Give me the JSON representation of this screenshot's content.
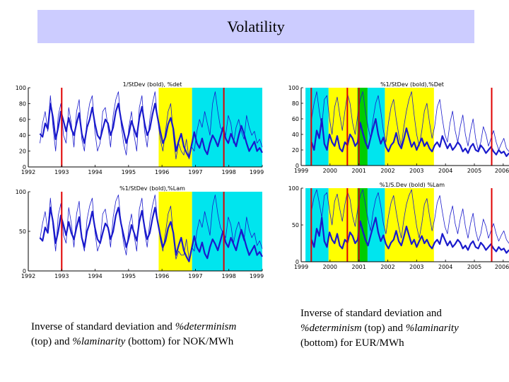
{
  "slide": {
    "title": "Volatility",
    "caption_left": {
      "part1": "Inverse of standard deviation and ",
      "italic1": "%determinism",
      "part2": " (top) and ",
      "italic2": "%laminarity",
      "part3": " (bottom) for NOK/MWh"
    },
    "caption_right": {
      "part1": "Inverse of standard deviation and ",
      "italic1": "%determinism",
      "part2": " (top) and ",
      "italic2": "%laminarity",
      "part3": " (bottom) for EUR/MWh"
    }
  },
  "colors": {
    "yellow": "#ffff00",
    "cyan": "#00e5ee",
    "green": "#00cc00",
    "red": "#e00000",
    "series": "#1a1acc"
  },
  "chart_data": [
    {
      "id": "nok-top",
      "type": "line",
      "title": "1/StDev (bold), %det",
      "x_ticks": [
        "1992",
        "1993",
        "1994",
        "1995",
        "1996",
        "1997",
        "1998",
        "1999"
      ],
      "x_range": [
        1992,
        1999
      ],
      "y_ticks": [
        "0",
        "20",
        "40",
        "60",
        "80",
        "100"
      ],
      "ylim": [
        0,
        100
      ],
      "bands": [
        {
          "from": 1995.9,
          "to": 1996.9,
          "color": "yellow"
        },
        {
          "from": 1996.9,
          "to": 1999,
          "color": "cyan"
        }
      ],
      "vlines": [
        1993.0,
        1997.85
      ],
      "series": [
        {
          "name": "1/StDev",
          "bold": true,
          "values": [
            42,
            38,
            55,
            48,
            80,
            62,
            35,
            50,
            70,
            58,
            45,
            62,
            48,
            40,
            55,
            68,
            42,
            30,
            50,
            60,
            75,
            55,
            40,
            35,
            48,
            60,
            55,
            40,
            50,
            70,
            80,
            60,
            45,
            30,
            42,
            58,
            48,
            38,
            62,
            76,
            55,
            40,
            48,
            66,
            80,
            62,
            45,
            30,
            38,
            54,
            62,
            48,
            20,
            32,
            42,
            26,
            18,
            12,
            28,
            44,
            30,
            24,
            36,
            22,
            16,
            30,
            40,
            34,
            26,
            38,
            50,
            36,
            30,
            42,
            34,
            26,
            40,
            52,
            42,
            30,
            20,
            26,
            32,
            20,
            24,
            18
          ]
        },
        {
          "name": "%det",
          "bold": false,
          "values": [
            30,
            55,
            70,
            45,
            90,
            50,
            20,
            65,
            80,
            40,
            30,
            75,
            55,
            25,
            70,
            85,
            35,
            20,
            60,
            80,
            90,
            45,
            20,
            30,
            70,
            75,
            50,
            25,
            65,
            85,
            95,
            55,
            30,
            15,
            50,
            70,
            40,
            20,
            75,
            90,
            45,
            25,
            60,
            80,
            95,
            60,
            35,
            20,
            45,
            70,
            80,
            40,
            10,
            30,
            20,
            15,
            35,
            10,
            25,
            20,
            45,
            60,
            50,
            70,
            55,
            40,
            80,
            95,
            70,
            50,
            45,
            40,
            65,
            55,
            30,
            50,
            60,
            45,
            35,
            65,
            50,
            40,
            45,
            30,
            35,
            25
          ]
        }
      ]
    },
    {
      "id": "nok-bottom",
      "type": "line",
      "title": "%1/StDev (bold),%Lam",
      "x_ticks": [
        "1992",
        "1993",
        "1994",
        "1995",
        "1996",
        "1997",
        "1998",
        "1999"
      ],
      "x_range": [
        1992,
        1999
      ],
      "y_ticks": [
        "0",
        "50",
        "100"
      ],
      "ylim": [
        0,
        100
      ],
      "bands": [
        {
          "from": 1995.9,
          "to": 1996.9,
          "color": "yellow"
        },
        {
          "from": 1996.9,
          "to": 1999,
          "color": "cyan"
        }
      ],
      "vlines": [
        1993.0,
        1997.85
      ],
      "series": [
        {
          "name": "1/StDev",
          "bold": true,
          "values": [
            42,
            38,
            55,
            48,
            80,
            62,
            35,
            50,
            70,
            58,
            45,
            62,
            48,
            40,
            55,
            68,
            42,
            30,
            50,
            60,
            75,
            55,
            40,
            35,
            48,
            60,
            55,
            40,
            50,
            70,
            80,
            60,
            45,
            30,
            42,
            58,
            48,
            38,
            62,
            76,
            55,
            40,
            48,
            66,
            80,
            62,
            45,
            30,
            38,
            54,
            62,
            48,
            20,
            32,
            42,
            26,
            18,
            12,
            28,
            44,
            30,
            24,
            36,
            22,
            16,
            30,
            40,
            34,
            26,
            38,
            50,
            36,
            30,
            42,
            34,
            26,
            40,
            52,
            42,
            30,
            20,
            26,
            32,
            20,
            24,
            18
          ]
        },
        {
          "name": "%Lam",
          "bold": false,
          "values": [
            40,
            60,
            75,
            50,
            92,
            55,
            25,
            70,
            85,
            45,
            35,
            80,
            60,
            30,
            72,
            88,
            40,
            25,
            65,
            82,
            92,
            50,
            25,
            35,
            72,
            78,
            55,
            30,
            68,
            88,
            96,
            60,
            35,
            20,
            55,
            72,
            45,
            25,
            78,
            92,
            50,
            30,
            62,
            82,
            96,
            62,
            40,
            25,
            48,
            72,
            82,
            45,
            15,
            25,
            20,
            20,
            40,
            15,
            30,
            25,
            50,
            65,
            55,
            75,
            60,
            45,
            82,
            96,
            72,
            55,
            48,
            42,
            68,
            58,
            35,
            52,
            62,
            48,
            38,
            68,
            52,
            42,
            48,
            32,
            38,
            28
          ]
        }
      ]
    },
    {
      "id": "eur-top",
      "type": "line",
      "title": "%1/StDev (bold),%Det",
      "x_ticks": [
        "1999",
        "2000",
        "2001",
        "2002",
        "2003",
        "2004",
        "2005",
        "2006"
      ],
      "x_range": [
        1999,
        2006.2
      ],
      "y_ticks": [
        "0",
        "20",
        "40",
        "60",
        "80",
        "100"
      ],
      "ylim": [
        0,
        100
      ],
      "bands": [
        {
          "from": 1999.15,
          "to": 1999.95,
          "color": "cyan"
        },
        {
          "from": 1999.95,
          "to": 2000.95,
          "color": "yellow"
        },
        {
          "from": 2000.95,
          "to": 2001.3,
          "color": "green"
        },
        {
          "from": 2001.3,
          "to": 2001.9,
          "color": "cyan"
        },
        {
          "from": 2001.9,
          "to": 2003.6,
          "color": "yellow"
        }
      ],
      "vlines": [
        1999.35,
        2000.6,
        2001.0,
        2005.6
      ],
      "series": [
        {
          "name": "1/StDev",
          "bold": true,
          "values": [
            30,
            20,
            45,
            35,
            60,
            28,
            20,
            40,
            30,
            25,
            38,
            22,
            18,
            30,
            26,
            40,
            35,
            25,
            30,
            55,
            42,
            30,
            22,
            35,
            48,
            60,
            40,
            28,
            36,
            24,
            18,
            26,
            30,
            42,
            28,
            22,
            34,
            48,
            36,
            24,
            30,
            20,
            28,
            35,
            25,
            30,
            22,
            18,
            26,
            30,
            24,
            38,
            30,
            22,
            28,
            20,
            24,
            30,
            26,
            18,
            22,
            16,
            24,
            28,
            20,
            18,
            26,
            22,
            16,
            20,
            24,
            18,
            14,
            20,
            16,
            18,
            12,
            16
          ]
        },
        {
          "name": "%Det",
          "bold": false,
          "values": [
            60,
            80,
            95,
            70,
            50,
            85,
            90,
            60,
            40,
            75,
            88,
            65,
            45,
            70,
            92,
            80,
            55,
            40,
            65,
            85,
            95,
            70,
            50,
            35,
            60,
            80,
            90,
            70,
            45,
            30,
            55,
            75,
            85,
            60,
            40,
            25,
            50,
            70,
            85,
            95,
            65,
            40,
            25,
            45,
            70,
            80,
            55,
            35,
            50,
            75,
            85,
            60,
            40,
            30,
            55,
            70,
            45,
            30,
            50,
            65,
            40,
            25,
            45,
            60,
            35,
            20,
            30,
            50,
            40,
            25,
            35,
            45,
            30,
            20,
            28,
            35,
            22,
            18
          ]
        }
      ]
    },
    {
      "id": "eur-bottom",
      "type": "line",
      "title": "%1/S.Dev (bold) %Lam",
      "x_ticks": [
        "1999",
        "2000",
        "2001",
        "2002",
        "2003",
        "2004",
        "2005",
        "2006"
      ],
      "x_range": [
        1999,
        2006.2
      ],
      "y_ticks": [
        "0",
        "50",
        "100"
      ],
      "ylim": [
        0,
        100
      ],
      "bands": [
        {
          "from": 1999.15,
          "to": 1999.95,
          "color": "cyan"
        },
        {
          "from": 1999.95,
          "to": 2000.95,
          "color": "yellow"
        },
        {
          "from": 2000.95,
          "to": 2001.3,
          "color": "green"
        },
        {
          "from": 2001.3,
          "to": 2001.9,
          "color": "cyan"
        },
        {
          "from": 2001.9,
          "to": 2003.6,
          "color": "yellow"
        }
      ],
      "vlines": [
        1999.35,
        2000.6,
        2001.0,
        2005.6
      ],
      "series": [
        {
          "name": "1/StDev",
          "bold": true,
          "values": [
            30,
            20,
            45,
            35,
            60,
            28,
            20,
            40,
            30,
            25,
            38,
            22,
            18,
            30,
            26,
            40,
            35,
            25,
            30,
            55,
            42,
            30,
            22,
            35,
            48,
            60,
            40,
            28,
            36,
            24,
            18,
            26,
            30,
            42,
            28,
            22,
            34,
            48,
            36,
            24,
            30,
            20,
            28,
            35,
            25,
            30,
            22,
            18,
            26,
            30,
            24,
            38,
            30,
            22,
            28,
            20,
            24,
            30,
            26,
            18,
            22,
            16,
            24,
            28,
            20,
            18,
            26,
            22,
            16,
            20,
            24,
            18,
            14,
            20,
            16,
            18,
            12,
            16
          ]
        },
        {
          "name": "%Lam",
          "bold": false,
          "values": [
            70,
            88,
            98,
            80,
            60,
            90,
            94,
            70,
            50,
            82,
            92,
            72,
            55,
            78,
            95,
            85,
            62,
            48,
            72,
            90,
            98,
            78,
            58,
            42,
            68,
            85,
            94,
            76,
            52,
            38,
            62,
            80,
            90,
            68,
            48,
            32,
            58,
            78,
            90,
            98,
            72,
            48,
            32,
            52,
            78,
            86,
            62,
            42,
            58,
            80,
            90,
            68,
            48,
            38,
            62,
            76,
            52,
            38,
            58,
            72,
            48,
            32,
            52,
            66,
            42,
            28,
            38,
            58,
            48,
            32,
            42,
            52,
            38,
            28,
            36,
            42,
            30,
            25
          ]
        }
      ]
    }
  ]
}
